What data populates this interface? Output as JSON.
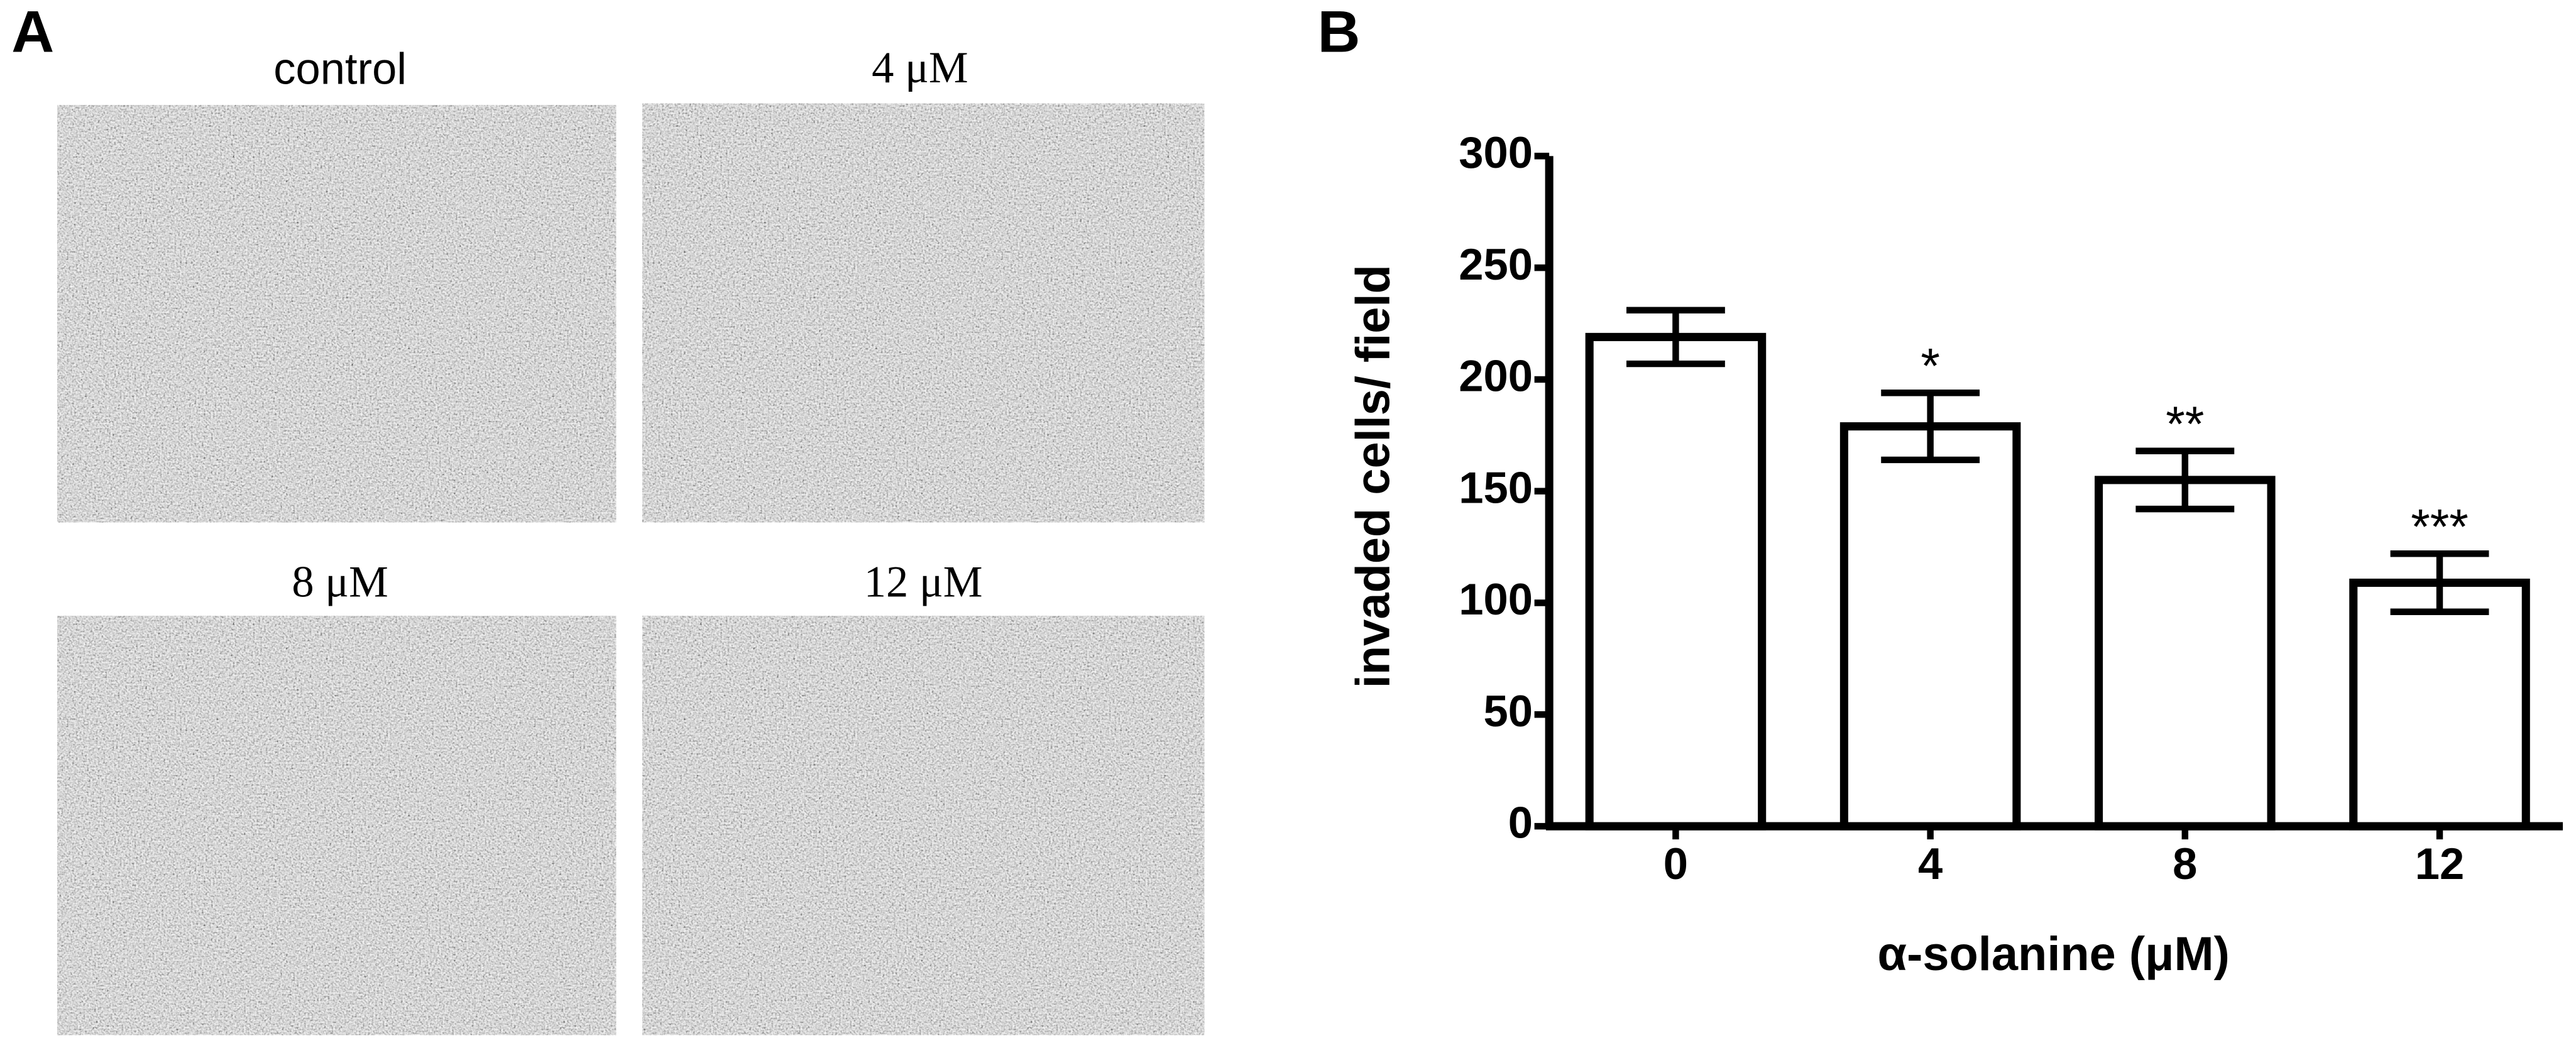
{
  "figure": {
    "panel_a_label": "A",
    "panel_b_label": "B",
    "captions": [
      "control",
      "4 μM",
      "8 μM",
      "12 μM"
    ]
  },
  "chart_data": {
    "type": "bar",
    "ylabel": "invaded cells/ field",
    "xlabel": "α-solanine (μM)",
    "categories": [
      "0",
      "4",
      "8",
      "12"
    ],
    "values": [
      219,
      179,
      155,
      109
    ],
    "errors": [
      12,
      15,
      13,
      13
    ],
    "annotations": [
      {
        "category": "4",
        "text": "*"
      },
      {
        "category": "8",
        "text": "**"
      },
      {
        "category": "12",
        "text": "***"
      }
    ],
    "color": "#ffffff",
    "edge_color": "#000000",
    "ylim": [
      0,
      300
    ],
    "yticks": [
      0,
      50,
      100,
      150,
      200,
      250,
      300
    ]
  }
}
